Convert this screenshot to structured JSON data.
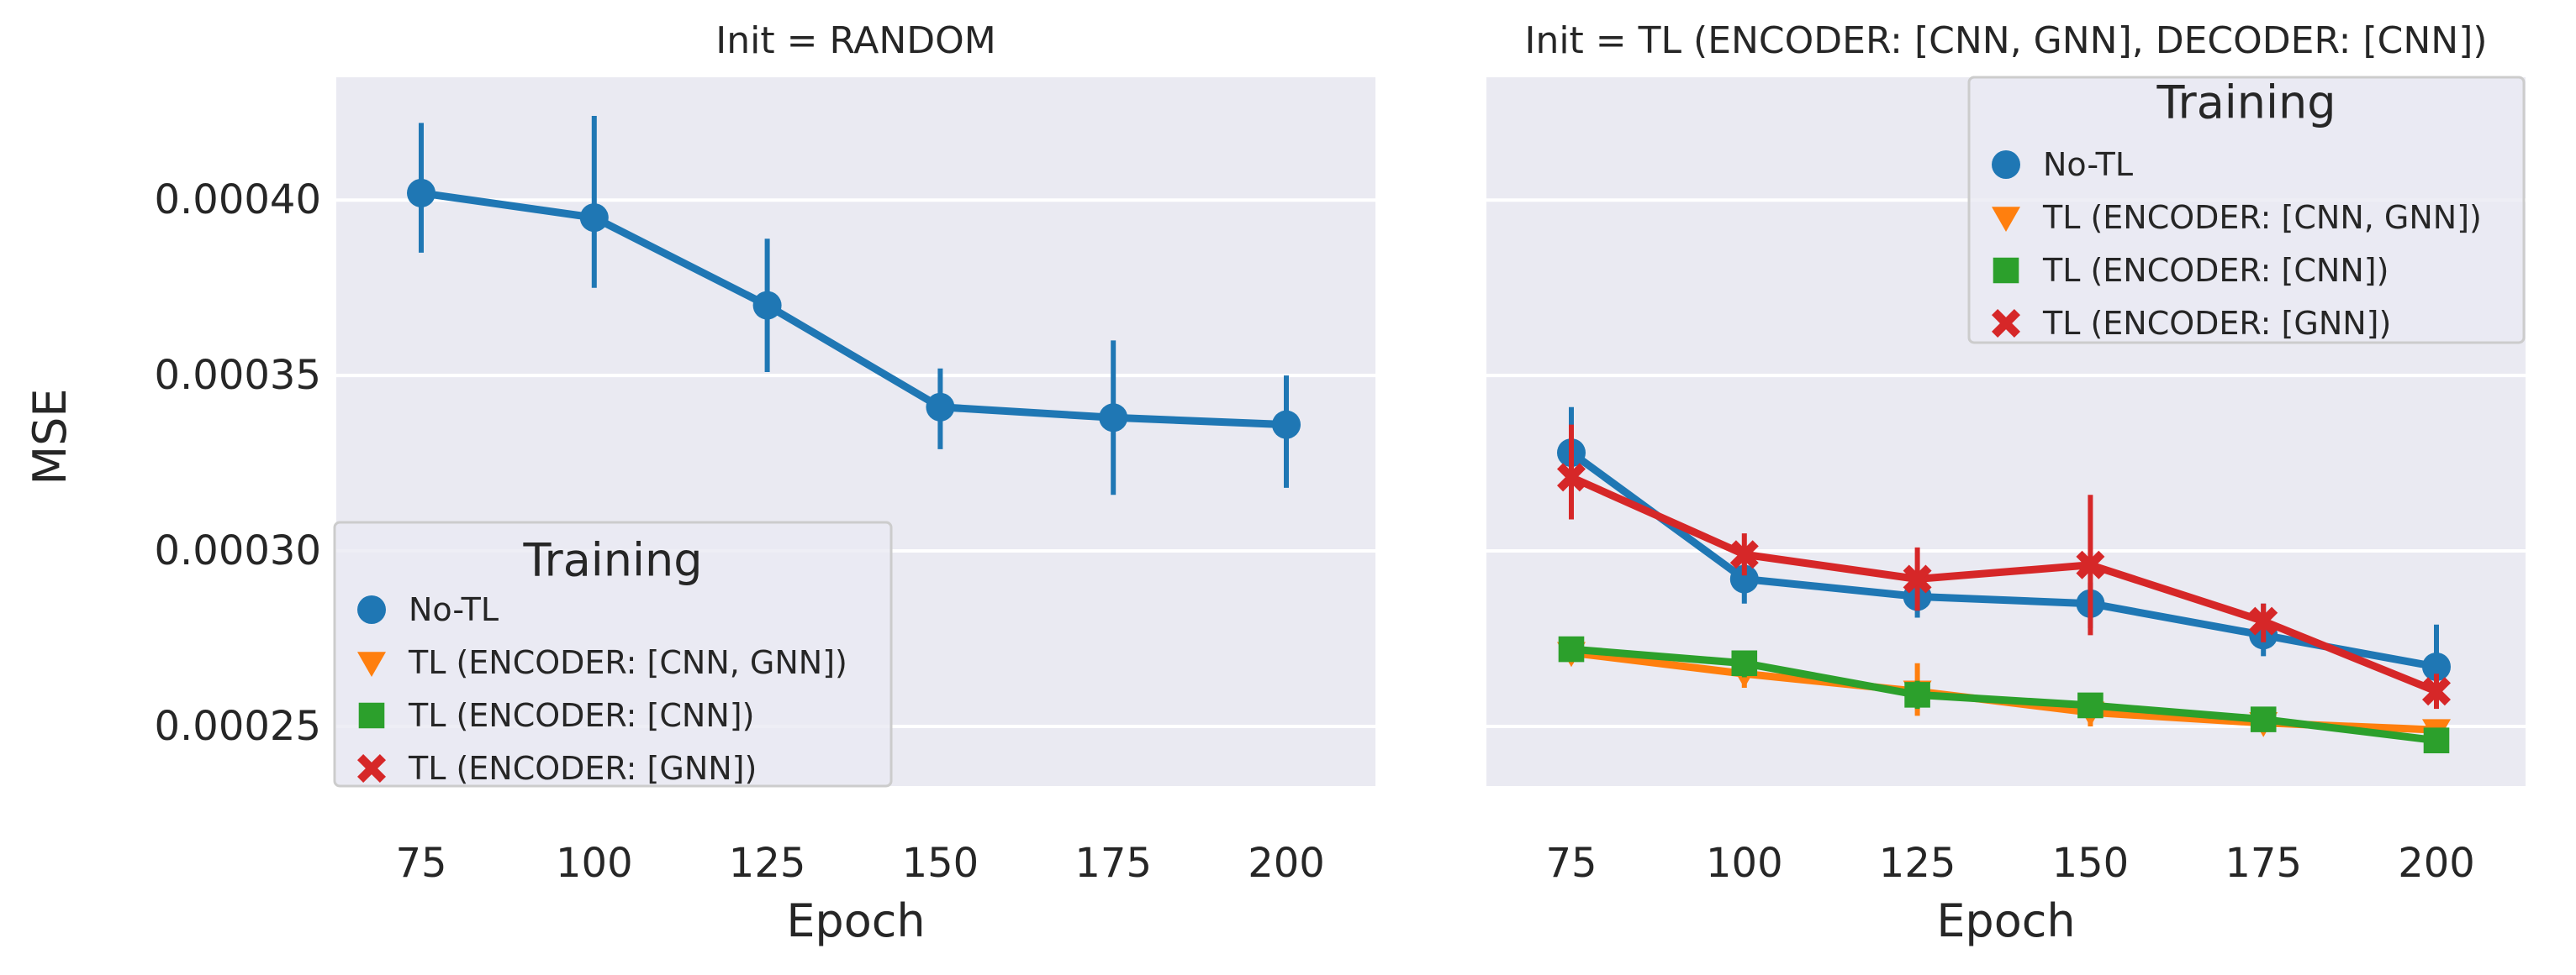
{
  "chart_data": [
    {
      "type": "line",
      "title": "Init = RANDOM",
      "xlabel": "Epoch",
      "ylabel": "MSE",
      "x": [
        75,
        100,
        125,
        150,
        175,
        200
      ],
      "xticks": [
        "75",
        "100",
        "125",
        "150",
        "175",
        "200"
      ],
      "yticks": [
        "0.00025",
        "0.00030",
        "0.00035",
        "0.00040"
      ],
      "ylim": [
        0.000233,
        0.000435
      ],
      "grid": true,
      "legend": {
        "title": "Training",
        "placement": "lower-left",
        "entries": [
          "No-TL",
          "TL (ENCODER: [CNN, GNN])",
          "TL (ENCODER: [CNN])",
          "TL (ENCODER: [GNN])"
        ]
      },
      "series": [
        {
          "name": "No-TL",
          "color": "#1f77b4",
          "marker": "circle",
          "values": [
            0.000402,
            0.000395,
            0.00037,
            0.000341,
            0.000338,
            0.000336
          ],
          "err_low": [
            0.000385,
            0.000375,
            0.000351,
            0.000329,
            0.000316,
            0.000318
          ],
          "err_high": [
            0.000422,
            0.000424,
            0.000389,
            0.000352,
            0.00036,
            0.00035
          ]
        }
      ]
    },
    {
      "type": "line",
      "title": "Init = TL (ENCODER: [CNN, GNN], DECODER: [CNN])",
      "xlabel": "Epoch",
      "ylabel": "",
      "x": [
        75,
        100,
        125,
        150,
        175,
        200
      ],
      "xticks": [
        "75",
        "100",
        "125",
        "150",
        "175",
        "200"
      ],
      "yticks": [],
      "ylim": [
        0.000233,
        0.000435
      ],
      "grid": true,
      "legend": {
        "title": "Training",
        "placement": "upper-right",
        "entries": [
          "No-TL",
          "TL (ENCODER: [CNN, GNN])",
          "TL (ENCODER: [CNN])",
          "TL (ENCODER: [GNN])"
        ]
      },
      "series": [
        {
          "name": "No-TL",
          "color": "#1f77b4",
          "marker": "circle",
          "values": [
            0.000328,
            0.000292,
            0.000287,
            0.000285,
            0.000276,
            0.000267
          ],
          "err_low": [
            0.000316,
            0.000285,
            0.000281,
            0.000278,
            0.00027,
            0.00026
          ],
          "err_high": [
            0.000341,
            0.000298,
            0.000293,
            0.000291,
            0.000285,
            0.000279
          ]
        },
        {
          "name": "TL (ENCODER: [CNN, GNN])",
          "color": "#ff7f0e",
          "marker": "triangle-down",
          "values": [
            0.000271,
            0.000265,
            0.00026,
            0.000254,
            0.000251,
            0.000249
          ],
          "err_low": [
            0.000268,
            0.000261,
            0.000253,
            0.00025,
            0.000249,
            0.000246
          ],
          "err_high": [
            0.000275,
            0.000269,
            0.000268,
            0.000258,
            0.000254,
            0.000252
          ]
        },
        {
          "name": "TL (ENCODER: [CNN])",
          "color": "#2ca02c",
          "marker": "square",
          "values": [
            0.000272,
            0.000268,
            0.000259,
            0.000256,
            0.000252,
            0.000246
          ],
          "err_low": [
            0.000269,
            0.000264,
            0.000255,
            0.000253,
            0.00025,
            0.000243
          ],
          "err_high": [
            0.000275,
            0.000271,
            0.000263,
            0.000259,
            0.000254,
            0.000249
          ]
        },
        {
          "name": "TL (ENCODER: [GNN])",
          "color": "#d62728",
          "marker": "x",
          "values": [
            0.000321,
            0.000299,
            0.000292,
            0.000296,
            0.00028,
            0.00026
          ],
          "err_low": [
            0.000309,
            0.000293,
            0.000283,
            0.000276,
            0.000274,
            0.000255
          ],
          "err_high": [
            0.000336,
            0.000305,
            0.000301,
            0.000316,
            0.000285,
            0.000265
          ]
        }
      ]
    }
  ]
}
